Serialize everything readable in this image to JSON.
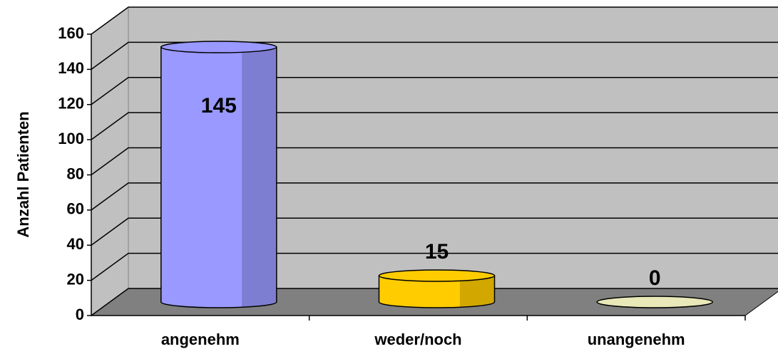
{
  "chart_data": {
    "type": "bar3d-cylinder",
    "y_label": "Anzahl Patienten",
    "categories": [
      "angenehm",
      "weder/noch",
      "unangenehm"
    ],
    "values": [
      145,
      15,
      0
    ],
    "colors": [
      "#9999ff",
      "#ffcc00",
      "#e8e8b8"
    ],
    "ylim": [
      0,
      160
    ],
    "yticks": [
      0,
      20,
      40,
      60,
      80,
      100,
      120,
      140,
      160
    ],
    "grid": true
  }
}
